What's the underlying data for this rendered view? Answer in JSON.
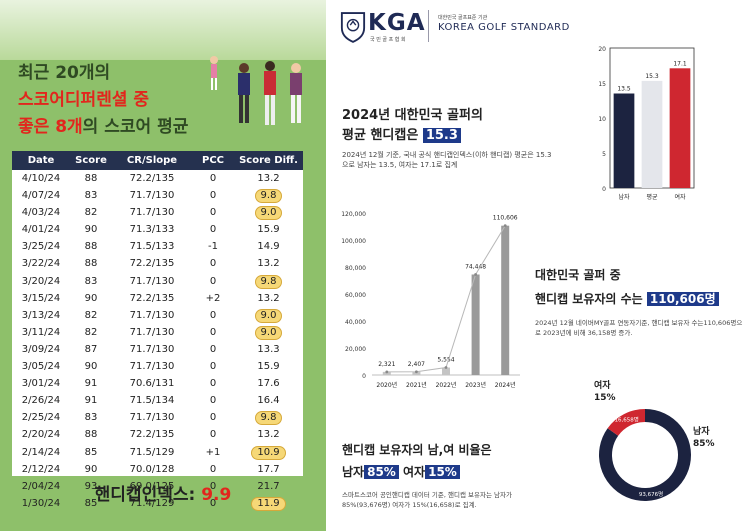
{
  "left": {
    "headline": {
      "line1": "최근 20개의",
      "line2": "스코어디퍼렌셜 중",
      "line3_red": "좋은 8개",
      "line3_rest": "의 스코어 평균"
    },
    "table": {
      "headers": [
        "Date",
        "Score",
        "CR/Slope",
        "PCC",
        "Score Diff."
      ],
      "rows": [
        {
          "date": "4/10/24",
          "score": "88",
          "cr": "72.2/135",
          "pcc": "0",
          "diff": "13.2",
          "hl": false
        },
        {
          "date": "4/07/24",
          "score": "83",
          "cr": "71.7/130",
          "pcc": "0",
          "diff": "9.8",
          "hl": true
        },
        {
          "date": "4/03/24",
          "score": "82",
          "cr": "71.7/130",
          "pcc": "0",
          "diff": "9.0",
          "hl": true
        },
        {
          "date": "4/01/24",
          "score": "90",
          "cr": "71.3/133",
          "pcc": "0",
          "diff": "15.9",
          "hl": false
        },
        {
          "date": "3/25/24",
          "score": "88",
          "cr": "71.5/133",
          "pcc": "-1",
          "diff": "14.9",
          "hl": false
        },
        {
          "date": "3/22/24",
          "score": "88",
          "cr": "72.2/135",
          "pcc": "0",
          "diff": "13.2",
          "hl": false
        },
        {
          "date": "3/20/24",
          "score": "83",
          "cr": "71.7/130",
          "pcc": "0",
          "diff": "9.8",
          "hl": true
        },
        {
          "date": "3/15/24",
          "score": "90",
          "cr": "72.2/135",
          "pcc": "+2",
          "diff": "13.2",
          "hl": false
        },
        {
          "date": "3/13/24",
          "score": "82",
          "cr": "71.7/130",
          "pcc": "0",
          "diff": "9.0",
          "hl": true
        },
        {
          "date": "3/11/24",
          "score": "82",
          "cr": "71.7/130",
          "pcc": "0",
          "diff": "9.0",
          "hl": true
        },
        {
          "date": "3/09/24",
          "score": "87",
          "cr": "71.7/130",
          "pcc": "0",
          "diff": "13.3",
          "hl": false
        },
        {
          "date": "3/05/24",
          "score": "90",
          "cr": "71.7/130",
          "pcc": "0",
          "diff": "15.9",
          "hl": false
        },
        {
          "date": "3/01/24",
          "score": "91",
          "cr": "70.6/131",
          "pcc": "0",
          "diff": "17.6",
          "hl": false
        },
        {
          "date": "2/26/24",
          "score": "91",
          "cr": "71.5/134",
          "pcc": "0",
          "diff": "16.4",
          "hl": false
        },
        {
          "date": "2/25/24",
          "score": "83",
          "cr": "71.7/130",
          "pcc": "0",
          "diff": "9.8",
          "hl": true
        },
        {
          "date": "2/20/24",
          "score": "88",
          "cr": "72.2/135",
          "pcc": "0",
          "diff": "13.2",
          "hl": false
        },
        {
          "date": "2/14/24",
          "score": "85",
          "cr": "71.5/129",
          "pcc": "+1",
          "diff": "10.9",
          "hl": true
        },
        {
          "date": "2/12/24",
          "score": "90",
          "cr": "70.0/128",
          "pcc": "0",
          "diff": "17.7",
          "hl": false
        },
        {
          "date": "2/04/24",
          "score": "93",
          "cr": "69.0/125",
          "pcc": "0",
          "diff": "21.7",
          "hl": false
        },
        {
          "date": "1/30/24",
          "score": "85",
          "cr": "71.4/129",
          "pcc": "0",
          "diff": "11.9",
          "hl": true
        }
      ]
    },
    "handicap_label": "핸디캡인덱스: ",
    "handicap_value": "9.9"
  },
  "brand": {
    "kga": "KGA",
    "kga_sub": "국 민 골 프 협 회",
    "org_small": "대한민국 골프표준 기관",
    "org": "KOREA GOLF STANDARD"
  },
  "section1": {
    "title1": "2024년 대한민국 골퍼의",
    "title2_pre": "평균 핸디캡은 ",
    "title2_value": "15.3",
    "note": "2024년 12월 기준, 국내 공식 핸디캡인덱스(이하 핸디캡) 평균은 15.3으로 남자는 13.5, 여자는 17.1로 집계"
  },
  "section2": {
    "title1": "대한민국 골퍼 중",
    "title2_pre": "핸디캡 보유자의 수는 ",
    "title2_value": "110,606명",
    "note": "2024년 12월 네이버MY골프 연동자기준, 핸디캡 보유자 수는110,606명으로 2023년에 비해 36,158명 증가."
  },
  "section3": {
    "title1": "핸디캡 보유자의 남,여 비율은",
    "title2_a": "남자",
    "title2_a_val": "85%",
    "title2_b": " 여자",
    "title2_b_val": "15%",
    "note": "스마트스코어 공인핸디캡 데이터 기준, 핸디캡 보유자는 남자가 85%(93,676명) 여자가 15%(16,658)로 집계."
  },
  "chart_data": [
    {
      "type": "bar",
      "categories": [
        "남자",
        "평균",
        "여자"
      ],
      "values": [
        13.5,
        15.3,
        17.1
      ],
      "value_labels": [
        "13.5",
        "15.3",
        "17.1"
      ],
      "ylim": [
        0,
        20
      ],
      "yticks": [
        0,
        5,
        10,
        15,
        20
      ],
      "colors": [
        "#1c2340",
        "#e4e6eb",
        "#cf2730"
      ]
    },
    {
      "type": "bar",
      "categories": [
        "2020년",
        "2021년",
        "2022년",
        "2023년",
        "2024년"
      ],
      "values": [
        2321,
        2407,
        5554,
        74448,
        110606
      ],
      "value_labels": [
        "2,321",
        "2,407",
        "5,554",
        "74,448",
        "110,606"
      ],
      "ylim": [
        0,
        120000
      ],
      "yticks": [
        "0",
        "20,000",
        "40,000",
        "60,000",
        "80,000",
        "100,000",
        "120,000"
      ],
      "line_overlay": true,
      "colors": [
        "#c4c4c4",
        "#9a9a9a"
      ]
    },
    {
      "type": "pie",
      "style": "donut",
      "labels": [
        "남자",
        "여자"
      ],
      "values": [
        93676,
        16658
      ],
      "percent": [
        85,
        15
      ],
      "value_labels": [
        "93,676명",
        "16,658명"
      ],
      "label_male": [
        "남자",
        "85%"
      ],
      "label_female": [
        "여자",
        "15%"
      ],
      "colors": [
        "#1c2340",
        "#cf2730"
      ]
    }
  ]
}
